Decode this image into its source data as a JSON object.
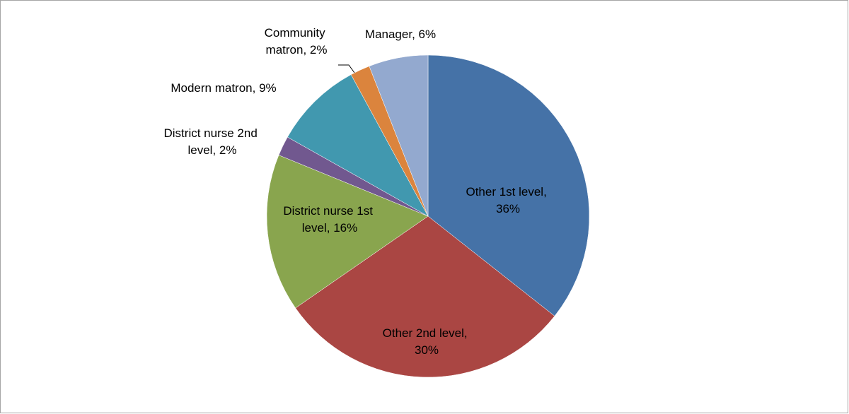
{
  "chart_data": {
    "type": "pie",
    "categories": [
      "Other 1st level",
      "Other 2nd level",
      "District nurse 1st level",
      "District nurse 2nd level",
      "Modern matron",
      "Community matron",
      "Manager"
    ],
    "values": [
      36,
      30,
      16,
      2,
      9,
      2,
      6
    ],
    "value_labels": [
      "Other 1st level, 36%",
      "Other 2nd level, 30%",
      "District nurse 1st level, 16%",
      "District nurse 2nd level, 2%",
      "Modern matron, 9%",
      "Community matron, 2%",
      "Manager, 6%"
    ],
    "colors": [
      "#4572a7",
      "#aa4643",
      "#89a54e",
      "#71588f",
      "#4198af",
      "#db843d",
      "#93a9cf"
    ]
  }
}
